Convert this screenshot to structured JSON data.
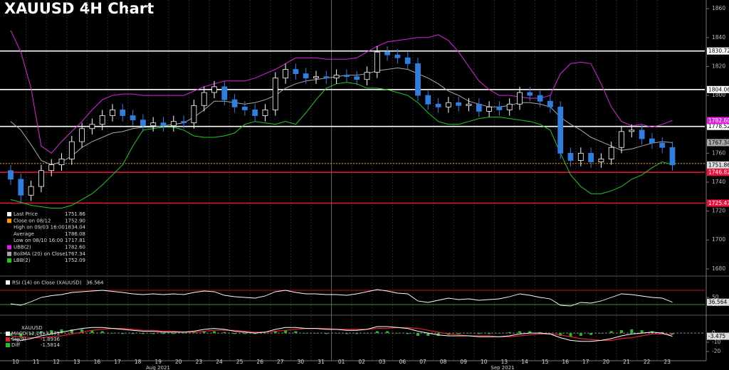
{
  "chart_data": [
    {
      "type": "candlestick",
      "title": "XAUUSD 4H Chart",
      "categories": [
        "10",
        null,
        "11",
        null,
        "12",
        null,
        "13",
        null,
        "16",
        null,
        "17",
        null,
        "18",
        null,
        "19",
        null,
        "20",
        null,
        "23",
        null,
        "24",
        null,
        "25",
        null,
        "26",
        null,
        "27",
        null,
        "30",
        null,
        "31",
        null,
        "01",
        null,
        "02",
        null,
        "03",
        null,
        "06",
        null,
        "07",
        null,
        "08",
        null,
        "09",
        null,
        "10",
        null,
        "13",
        null,
        "14",
        null,
        "15",
        null,
        "16",
        null,
        "17",
        null,
        "20",
        null,
        "21",
        null,
        "22",
        null,
        "23",
        null
      ],
      "months": [
        "Aug 2021",
        "Sep 2021"
      ],
      "open": [
        1748,
        1742,
        1731,
        1737,
        1748,
        1752,
        1756,
        1768,
        1777,
        1780,
        1786,
        1790,
        1786,
        1783,
        1779,
        1781,
        1779,
        1782,
        1781,
        1793,
        1802,
        1806,
        1797,
        1792,
        1790,
        1786,
        1790,
        1812,
        1818,
        1815,
        1812,
        1813,
        1812,
        1814,
        1813,
        1811,
        1816,
        1830,
        1828,
        1826,
        1822,
        1800,
        1794,
        1792,
        1795,
        1793,
        1794,
        1789,
        1792,
        1790,
        1794,
        1802,
        1800,
        1796,
        1792,
        1760,
        1755,
        1760,
        1754,
        1756,
        1764,
        1775,
        1776,
        1770,
        1767,
        1764
      ],
      "high": [
        1752,
        1746,
        1741,
        1752,
        1756,
        1760,
        1772,
        1781,
        1784,
        1790,
        1794,
        1794,
        1790,
        1787,
        1785,
        1785,
        1786,
        1786,
        1797,
        1806,
        1810,
        1810,
        1801,
        1796,
        1794,
        1794,
        1816,
        1822,
        1822,
        1819,
        1817,
        1817,
        1818,
        1818,
        1817,
        1820,
        1834,
        1834,
        1832,
        1830,
        1826,
        1804,
        1798,
        1799,
        1799,
        1798,
        1798,
        1796,
        1796,
        1798,
        1806,
        1806,
        1804,
        1800,
        1796,
        1764,
        1764,
        1764,
        1760,
        1768,
        1779,
        1780,
        1780,
        1774,
        1771,
        1768
      ],
      "low": [
        1738,
        1725,
        1727,
        1733,
        1744,
        1748,
        1752,
        1764,
        1773,
        1776,
        1782,
        1782,
        1779,
        1775,
        1775,
        1775,
        1775,
        1777,
        1777,
        1789,
        1798,
        1793,
        1788,
        1786,
        1782,
        1782,
        1786,
        1808,
        1811,
        1808,
        1808,
        1808,
        1808,
        1809,
        1807,
        1807,
        1812,
        1824,
        1822,
        1818,
        1796,
        1790,
        1788,
        1788,
        1789,
        1789,
        1785,
        1785,
        1786,
        1786,
        1790,
        1796,
        1792,
        1788,
        1756,
        1751,
        1751,
        1750,
        1750,
        1752,
        1760,
        1771,
        1766,
        1763,
        1760,
        1748
      ],
      "close": [
        1742,
        1731,
        1737,
        1748,
        1752,
        1756,
        1768,
        1777,
        1780,
        1786,
        1790,
        1786,
        1783,
        1779,
        1781,
        1779,
        1782,
        1781,
        1793,
        1802,
        1806,
        1797,
        1792,
        1790,
        1786,
        1790,
        1812,
        1818,
        1815,
        1812,
        1813,
        1812,
        1814,
        1813,
        1811,
        1816,
        1830,
        1828,
        1826,
        1822,
        1800,
        1794,
        1792,
        1795,
        1793,
        1794,
        1789,
        1792,
        1790,
        1794,
        1802,
        1800,
        1796,
        1792,
        1760,
        1755,
        1760,
        1754,
        1756,
        1764,
        1775,
        1776,
        1770,
        1767,
        1764,
        1751.86
      ],
      "up_color": "#ffffff",
      "down_color": "#2f7fe0",
      "series": [
        {
          "name": "UBB(2)",
          "color": "#e020e0",
          "tag": true,
          "last": {
            "value": 1782.6,
            "label": "1782.60"
          },
          "values": [
            1845,
            1830,
            1805,
            1765,
            1760,
            1768,
            1775,
            1782,
            1790,
            1797,
            1800,
            1801,
            1801,
            1800,
            1800,
            1800,
            1800,
            1800,
            1803,
            1806,
            1808,
            1810,
            1810,
            1810,
            1812,
            1815,
            1818,
            1822,
            1826,
            1826,
            1826,
            1825,
            1825,
            1825,
            1826,
            1830,
            1834,
            1837,
            1838,
            1839,
            1840,
            1840,
            1842,
            1838,
            1830,
            1820,
            1810,
            1804,
            1800,
            1800,
            1799,
            1798,
            1798,
            1800,
            1815,
            1822,
            1823,
            1822,
            1808,
            1792,
            1782,
            1779,
            1780,
            1778,
            1780,
            1782.6
          ]
        },
        {
          "name": "BollMA (20) on Close",
          "color": "#a8a8a8",
          "tag": true,
          "last": 1767.34,
          "values": [
            1782,
            1776,
            1766,
            1755,
            1752,
            1754,
            1758,
            1764,
            1768,
            1771,
            1774,
            1775,
            1777,
            1778,
            1778,
            1779,
            1780,
            1781,
            1785,
            1790,
            1796,
            1796,
            1795,
            1794,
            1795,
            1797,
            1800,
            1805,
            1808,
            1810,
            1811,
            1812,
            1813,
            1814,
            1814,
            1815,
            1817,
            1818,
            1819,
            1818,
            1815,
            1812,
            1808,
            1803,
            1800,
            1796,
            1794,
            1792,
            1792,
            1793,
            1795,
            1795,
            1794,
            1792,
            1785,
            1780,
            1776,
            1771,
            1768,
            1765,
            1762,
            1763,
            1765,
            1767,
            1768,
            1767.34
          ]
        },
        {
          "name": "LBB(2)",
          "color": "#22c822",
          "tag": false,
          "last": 1752.09,
          "values": [
            1728,
            1726,
            1724,
            1723,
            1722,
            1722,
            1724,
            1728,
            1732,
            1738,
            1745,
            1752,
            1765,
            1776,
            1777,
            1778,
            1778,
            1776,
            1772,
            1771,
            1771,
            1772,
            1774,
            1780,
            1782,
            1781,
            1780,
            1782,
            1780,
            1788,
            1797,
            1805,
            1808,
            1809,
            1808,
            1805,
            1805,
            1804,
            1802,
            1800,
            1795,
            1788,
            1782,
            1780,
            1780,
            1782,
            1784,
            1785,
            1785,
            1784,
            1783,
            1782,
            1780,
            1776,
            1760,
            1745,
            1737,
            1732,
            1732,
            1734,
            1737,
            1742,
            1745,
            1750,
            1754,
            1752.09
          ]
        }
      ],
      "levels": [
        {
          "value": 1830.72,
          "color": "#ffffff"
        },
        {
          "value": 1804.06,
          "color": "#ffffff"
        },
        {
          "value": 1778.52,
          "color": "#ffffff"
        },
        {
          "value": 1746.82,
          "color": "#f0103a"
        },
        {
          "value": 1725.47,
          "color": "#f0103a"
        }
      ],
      "legend_rows": [
        {
          "name": "Last Price",
          "color": "#ffffff",
          "value": 1751.86,
          "tag": true
        },
        {
          "name": "Close on 08/12",
          "color": "#ff9900",
          "value": {
            "value": 1752.9,
            "label": "1752.90"
          },
          "line": "dashed"
        },
        {
          "name": "High on 09/03 16:00",
          "value": 1834.04
        },
        {
          "name": "Average",
          "value": 1786.08
        },
        {
          "name": "Low on 08/10 16:00",
          "value": 1717.81
        }
      ],
      "ylim": [
        1676,
        1866
      ],
      "yticks": [
        1680,
        1700,
        1720,
        1740,
        1760,
        1780,
        1800,
        1820,
        1840,
        1860
      ]
    },
    {
      "type": "line",
      "title": "RSI (14) on Close (XAUUSD)",
      "series": [
        {
          "name": "RSI (14) on Close (XAUUSD)",
          "color": "#ffffff",
          "values": [
            32,
            28,
            38,
            50,
            55,
            58,
            64,
            66,
            68,
            70,
            67,
            64,
            60,
            58,
            60,
            58,
            60,
            58,
            64,
            68,
            66,
            56,
            52,
            50,
            48,
            54,
            66,
            70,
            64,
            60,
            60,
            58,
            58,
            56,
            60,
            66,
            72,
            68,
            62,
            60,
            40,
            36,
            42,
            48,
            44,
            46,
            42,
            44,
            46,
            52,
            60,
            56,
            50,
            46,
            28,
            26,
            36,
            34,
            40,
            50,
            60,
            58,
            54,
            50,
            48,
            36.564
          ]
        }
      ],
      "bands": [
        {
          "value": 70,
          "color": "#c01020"
        },
        {
          "value": 30,
          "color": "#20a020"
        }
      ],
      "ylim": [
        6,
        106
      ],
      "yticks": [
        30,
        50
      ]
    },
    {
      "type": "macd",
      "title": "XAUUSD",
      "series": [
        {
          "name": "MACD(12,26)",
          "color": "#ffffff",
          "values": [
            -6,
            -8,
            -6,
            -3,
            -1,
            1,
            3,
            5,
            6,
            6,
            5,
            4,
            3,
            2,
            2,
            1,
            1,
            1,
            2,
            4,
            5,
            4,
            2,
            1,
            0,
            1,
            4,
            6,
            6,
            5,
            5,
            4,
            4,
            3,
            3,
            4,
            7,
            7,
            6,
            5,
            2,
            0,
            -2,
            -3,
            -3,
            -3,
            -4,
            -4,
            -4,
            -3,
            -1,
            0,
            0,
            -1,
            -5,
            -8,
            -9,
            -9,
            -8,
            -6,
            -3,
            -1,
            0,
            1,
            0,
            -3.475
          ]
        },
        {
          "name": "Sig(9)",
          "color": "#e02030",
          "values": [
            -3,
            -4,
            -5,
            -5,
            -4,
            -3,
            -1,
            1,
            3,
            4,
            5,
            5,
            4,
            3,
            3,
            2,
            2,
            1,
            1,
            2,
            3,
            3,
            3,
            2,
            1,
            1,
            2,
            3,
            4,
            5,
            5,
            5,
            4,
            4,
            4,
            4,
            5,
            5,
            6,
            6,
            5,
            3,
            1,
            -1,
            -2,
            -3,
            -3,
            -3,
            -4,
            -4,
            -3,
            -2,
            -1,
            -1,
            -2,
            -4,
            -6,
            -7,
            -8,
            -8,
            -6,
            -5,
            -3,
            -1,
            -1,
            -1.8936
          ]
        },
        {
          "name": "Diff",
          "color": "#20c020",
          "values": [
            -3,
            -4,
            -1,
            2,
            3,
            4,
            4,
            4,
            3,
            2,
            0,
            -1,
            -1,
            -1,
            -1,
            -1,
            -1,
            0,
            1,
            2,
            2,
            1,
            -1,
            -1,
            -1,
            0,
            2,
            3,
            2,
            0,
            0,
            -1,
            0,
            -1,
            -1,
            0,
            2,
            2,
            0,
            -1,
            -3,
            -3,
            -3,
            -2,
            -1,
            0,
            -1,
            -1,
            0,
            1,
            2,
            2,
            1,
            0,
            -3,
            -4,
            -3,
            -2,
            0,
            2,
            3,
            4,
            3,
            2,
            1,
            -1.5814
          ]
        }
      ],
      "ylim": [
        -30,
        17
      ],
      "yticks": [
        -20,
        -10,
        0
      ]
    }
  ]
}
